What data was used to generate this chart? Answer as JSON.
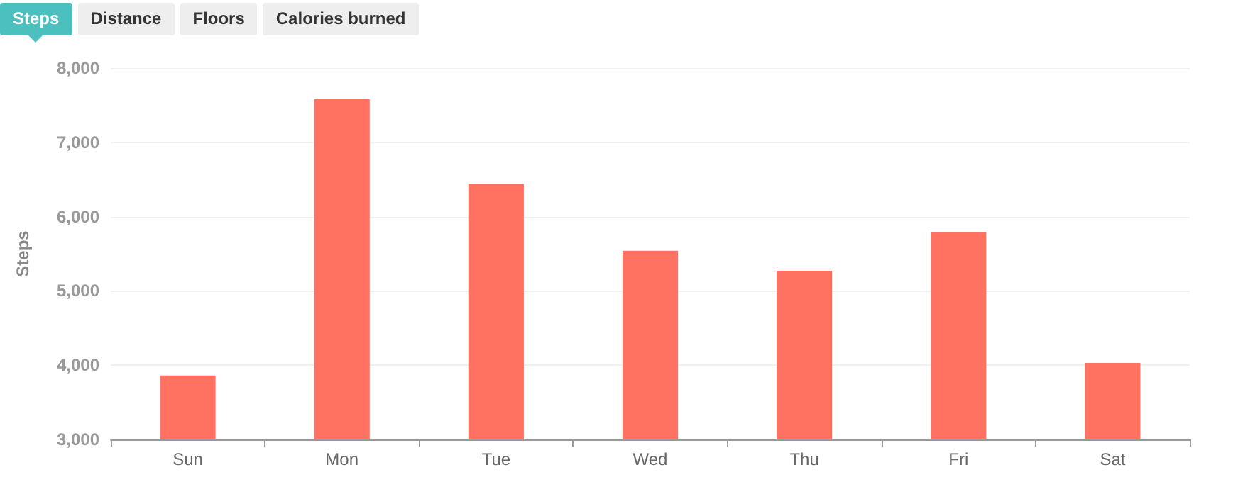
{
  "chart_data": {
    "type": "bar",
    "ylabel": "Steps",
    "annotations": [
      "Steps",
      "Distance",
      "Floors",
      "Calories burned"
    ],
    "categories": [
      "Sun",
      "Mon",
      "Tue",
      "Wed",
      "Thu",
      "Fri",
      "Sat"
    ],
    "values": [
      3860,
      7580,
      6440,
      5540,
      5270,
      5790,
      4030
    ],
    "color": "#ff7262",
    "ylim": [
      3000,
      8000
    ],
    "yticks": [
      {
        "value": 3000,
        "label": "3,000"
      },
      {
        "value": 4000,
        "label": "4,000"
      },
      {
        "value": 5000,
        "label": "5,000"
      },
      {
        "value": 6000,
        "label": "6,000"
      },
      {
        "value": 7000,
        "label": "7,000"
      },
      {
        "value": 8000,
        "label": "8,000"
      }
    ],
    "grid": "y"
  }
}
